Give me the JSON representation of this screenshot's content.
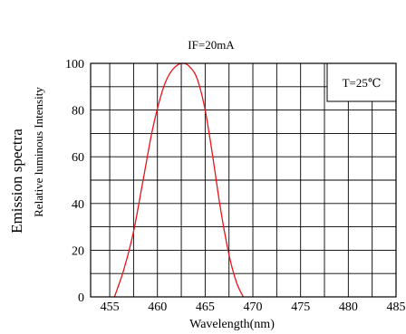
{
  "chart_data": {
    "type": "line",
    "title": "IF=20mA",
    "ylabel_main": "Emission spectra",
    "ylabel_sub": "Relative luminous Intensity",
    "xlabel": "Wavelength(nm)",
    "annotation": "T=25℃",
    "xlim": [
      453,
      485
    ],
    "ylim": [
      0,
      100
    ],
    "xticks": [
      455,
      460,
      465,
      470,
      475,
      480,
      485
    ],
    "yticks": [
      0,
      20,
      40,
      60,
      80,
      100
    ],
    "grid": true,
    "series": [
      {
        "color": "#e8141a",
        "x": [
          455.5,
          456.5,
          457.5,
          458.5,
          459.5,
          460.5,
          461.2,
          462.0,
          462.8,
          463.5,
          464.2,
          465.0,
          465.8,
          466.6,
          467.5,
          468.3,
          469.0
        ],
        "y": [
          0,
          12,
          28,
          50,
          72,
          88,
          95,
          99,
          100,
          98,
          93,
          80,
          60,
          38,
          18,
          6,
          0
        ]
      }
    ]
  }
}
